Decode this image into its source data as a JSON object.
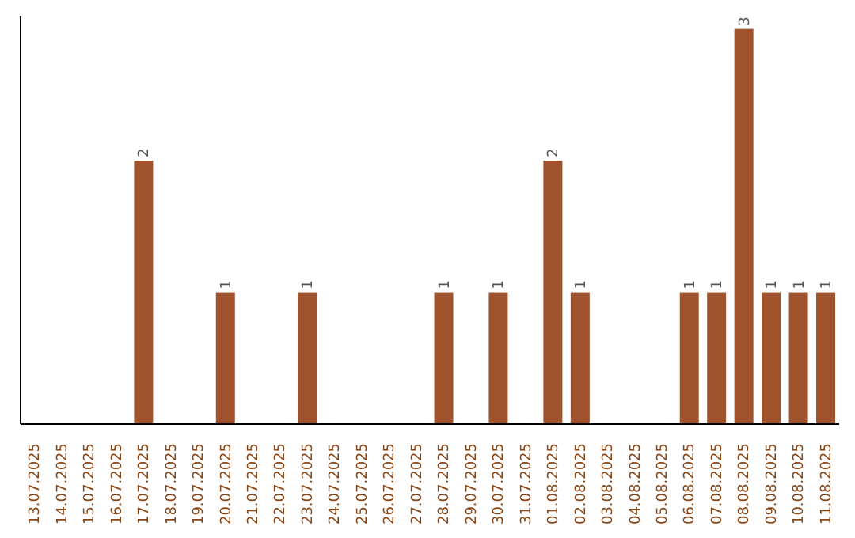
{
  "chart_data": {
    "type": "bar",
    "categories": [
      "13.07.2025",
      "14.07.2025",
      "15.07.2025",
      "16.07.2025",
      "17.07.2025",
      "18.07.2025",
      "19.07.2025",
      "20.07.2025",
      "21.07.2025",
      "22.07.2025",
      "23.07.2025",
      "24.07.2025",
      "25.07.2025",
      "26.07.2025",
      "27.07.2025",
      "28.07.2025",
      "29.07.2025",
      "30.07.2025",
      "31.07.2025",
      "01.08.2025",
      "02.08.2025",
      "03.08.2025",
      "04.08.2025",
      "05.08.2025",
      "06.08.2025",
      "07.08.2025",
      "08.08.2025",
      "09.08.2025",
      "10.08.2025",
      "11.08.2025"
    ],
    "values": [
      0,
      0,
      0,
      0,
      2,
      0,
      0,
      1,
      0,
      0,
      1,
      0,
      0,
      0,
      0,
      1,
      0,
      1,
      0,
      2,
      1,
      0,
      0,
      0,
      1,
      1,
      3,
      1,
      1,
      1
    ],
    "value_labels": [
      null,
      null,
      null,
      null,
      "2",
      null,
      null,
      "1",
      null,
      null,
      "1",
      null,
      null,
      null,
      null,
      "1",
      null,
      "1",
      null,
      "2",
      "1",
      null,
      null,
      null,
      "1",
      "1",
      "3",
      "1",
      "1",
      "1"
    ],
    "color": "#a0522d",
    "ylim": [
      0,
      3.1
    ],
    "tick_labels": "x",
    "grid": false
  }
}
